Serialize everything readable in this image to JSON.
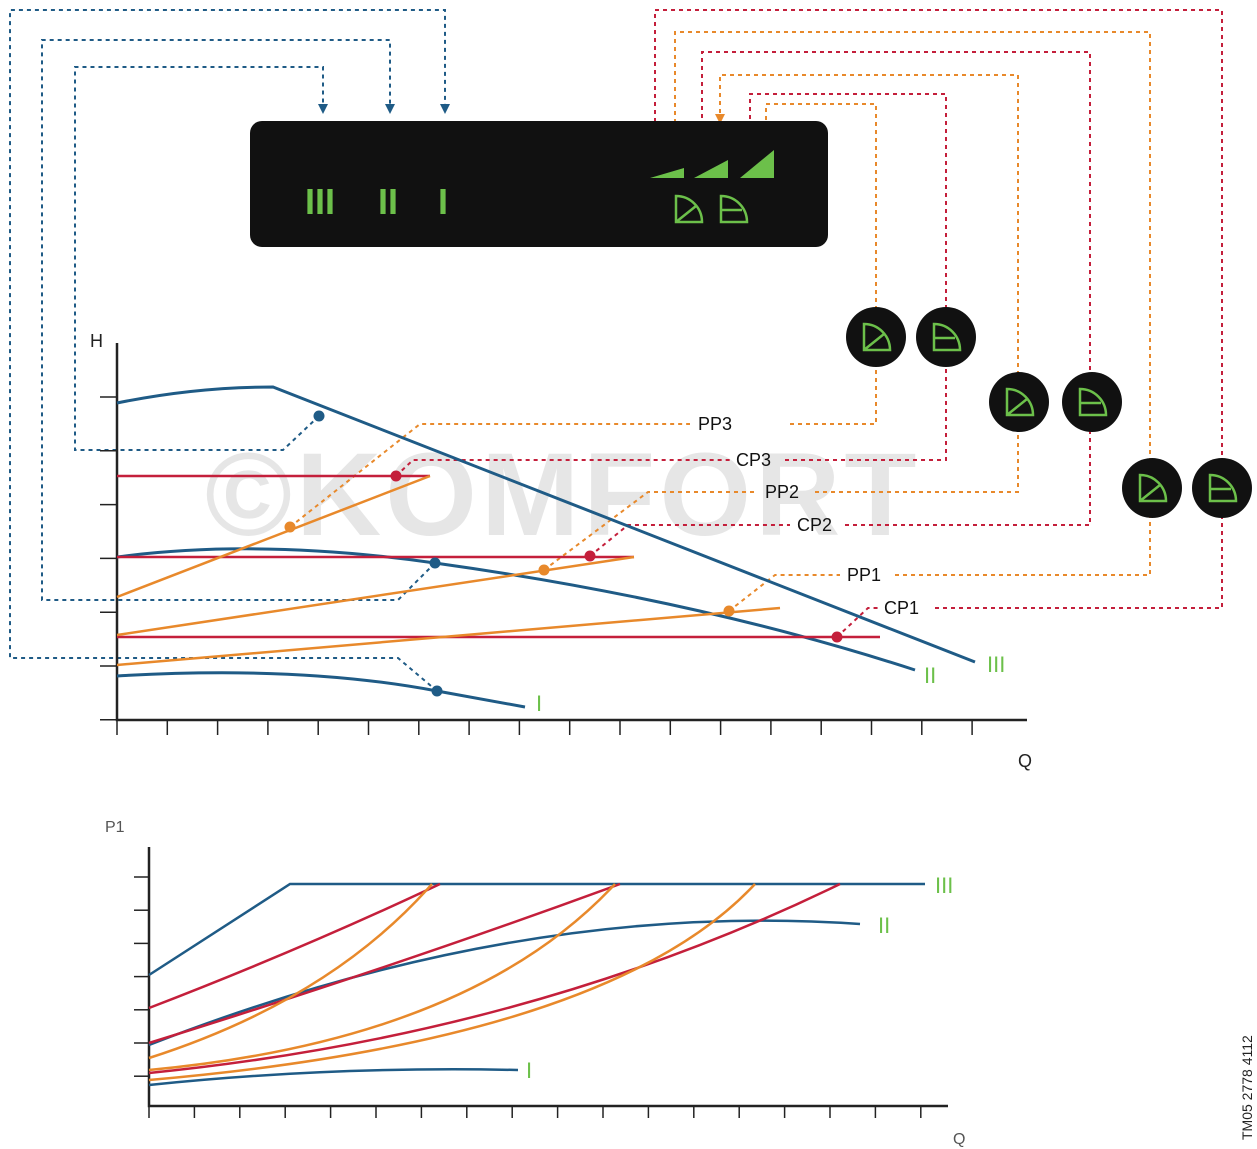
{
  "watermark": "©KOMFORT",
  "document_id": "TM05 2778 4112",
  "control_panel": {
    "speed_labels": [
      "III",
      "II",
      "I"
    ]
  },
  "upper_chart": {
    "ylabel": "H",
    "xlabel": "Q",
    "curve_labels": [
      "III",
      "II",
      "I"
    ],
    "mode_labels": [
      "PP3",
      "CP3",
      "PP2",
      "CP2",
      "PP1",
      "CP1"
    ]
  },
  "lower_chart": {
    "ylabel": "P1",
    "xlabel": "Q",
    "curve_labels": [
      "III",
      "II",
      "I"
    ]
  },
  "colors": {
    "panel_bg": "#111111",
    "green": "#6cc04a",
    "blue": "#1f5b86",
    "orange": "#e8892b",
    "red": "#c41f3b",
    "axis": "#222222"
  },
  "icons": {
    "proportional_pressure": "proportional-pressure-icon",
    "constant_pressure": "constant-pressure-icon",
    "bar_indicator": "level-bar-icon"
  }
}
